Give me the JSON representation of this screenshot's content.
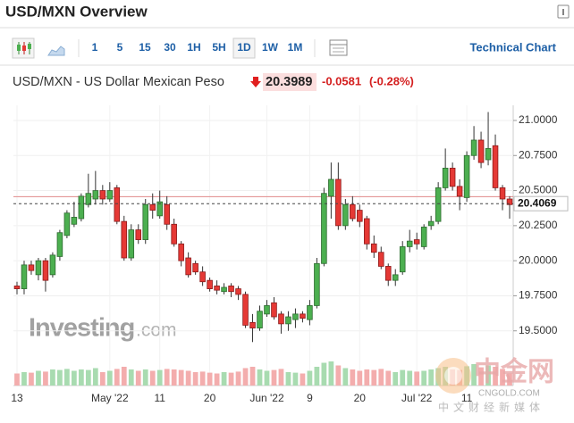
{
  "header": {
    "title": "USD/MXN Overview"
  },
  "toolbar": {
    "intervals": [
      "1",
      "5",
      "15",
      "30",
      "1H",
      "5H",
      "1D",
      "1W",
      "1M"
    ],
    "selected_interval": 6,
    "technical_chart": "Technical Chart"
  },
  "quote": {
    "name": "USD/MXN - US Dollar Mexican Peso",
    "price": "20.3989",
    "change": "-0.0581",
    "change_percent": "(-0.28%)"
  },
  "watermark": {
    "brand": "Investing",
    "brand_suffix": ".com",
    "cn_name": "中金网",
    "cn_site": "CNGOLD.COM",
    "cn_slogan": "中文财经新媒体"
  },
  "chart_data": {
    "type": "candlestick",
    "categories": [
      "13",
      null,
      null,
      null,
      null,
      null,
      null,
      null,
      null,
      null,
      null,
      null,
      null,
      "May '22",
      null,
      null,
      null,
      null,
      null,
      null,
      "11",
      null,
      null,
      null,
      null,
      null,
      null,
      "20",
      null,
      null,
      null,
      null,
      null,
      null,
      null,
      "Jun '22",
      null,
      null,
      null,
      null,
      null,
      "9",
      null,
      null,
      null,
      null,
      null,
      null,
      "20",
      null,
      null,
      null,
      null,
      null,
      null,
      null,
      "Jul '22",
      null,
      null,
      null,
      null,
      null,
      null,
      "11",
      null,
      null,
      null,
      null,
      null,
      null
    ],
    "open": [
      19.82,
      19.8,
      19.97,
      19.9,
      20.0,
      19.9,
      20.03,
      20.18,
      20.26,
      20.3,
      20.4,
      20.44,
      20.5,
      20.44,
      20.52,
      20.28,
      20.02,
      20.22,
      20.15,
      20.4,
      20.32,
      20.4,
      20.26,
      20.12,
      20.02,
      19.98,
      19.92,
      19.86,
      19.82,
      19.78,
      19.82,
      19.8,
      19.76,
      19.56,
      19.52,
      19.62,
      19.7,
      19.62,
      19.55,
      19.58,
      19.62,
      19.58,
      19.68,
      19.98,
      20.46,
      20.58,
      20.25,
      20.4,
      20.36,
      20.3,
      20.12,
      20.06,
      19.96,
      19.86,
      19.92,
      20.1,
      20.15,
      20.1,
      20.25,
      20.28,
      20.52,
      20.66,
      20.53,
      20.45,
      20.75,
      20.86,
      20.72,
      20.82,
      20.52,
      20.44
    ],
    "high": [
      19.85,
      20.0,
      20.0,
      20.02,
      20.02,
      20.06,
      20.22,
      20.36,
      20.42,
      20.48,
      20.62,
      20.64,
      20.54,
      20.56,
      20.54,
      20.32,
      20.26,
      20.26,
      20.44,
      20.48,
      20.5,
      20.46,
      20.3,
      20.14,
      20.06,
      20.0,
      19.96,
      19.88,
      19.86,
      19.84,
      19.84,
      19.82,
      19.78,
      19.62,
      19.68,
      19.72,
      19.74,
      19.64,
      19.64,
      19.66,
      19.64,
      19.72,
      20.02,
      20.52,
      20.7,
      20.7,
      20.44,
      20.46,
      20.4,
      20.32,
      20.18,
      20.1,
      19.98,
      19.94,
      20.14,
      20.22,
      20.2,
      20.26,
      20.32,
      20.56,
      20.8,
      20.7,
      20.58,
      20.78,
      20.96,
      20.92,
      21.06,
      20.9,
      20.54,
      20.46
    ],
    "low": [
      19.76,
      19.76,
      19.9,
      19.86,
      19.78,
      19.88,
      20.0,
      20.16,
      20.24,
      20.28,
      20.38,
      20.4,
      20.4,
      20.42,
      20.26,
      20.0,
      20.0,
      20.12,
      20.12,
      20.3,
      20.3,
      20.22,
      20.1,
      19.96,
      19.88,
      19.9,
      19.82,
      19.78,
      19.76,
      19.76,
      19.74,
      19.72,
      19.52,
      19.42,
      19.5,
      19.6,
      19.58,
      19.48,
      19.5,
      19.52,
      19.56,
      19.54,
      19.66,
      19.96,
      20.3,
      20.22,
      20.22,
      20.28,
      20.24,
      20.08,
      20.02,
      19.94,
      19.82,
      19.82,
      19.9,
      20.06,
      20.08,
      20.08,
      20.22,
      20.26,
      20.5,
      20.5,
      20.36,
      20.42,
      20.72,
      20.66,
      20.68,
      20.5,
      20.36,
      20.3
    ],
    "close": [
      19.8,
      19.97,
      19.93,
      20.0,
      19.86,
      20.04,
      20.2,
      20.34,
      20.31,
      20.46,
      20.48,
      20.5,
      20.44,
      20.5,
      20.28,
      20.02,
      20.22,
      20.15,
      20.4,
      20.36,
      20.42,
      20.26,
      20.12,
      20.0,
      19.9,
      19.92,
      19.85,
      19.8,
      19.79,
      19.81,
      19.78,
      19.76,
      19.54,
      19.52,
      19.64,
      19.68,
      19.6,
      19.55,
      19.6,
      19.62,
      19.59,
      19.68,
      19.98,
      20.48,
      20.58,
      20.25,
      20.4,
      20.3,
      20.28,
      20.12,
      20.06,
      19.96,
      19.86,
      19.9,
      20.1,
      20.14,
      20.12,
      20.24,
      20.28,
      20.52,
      20.66,
      20.53,
      20.46,
      20.75,
      20.86,
      20.7,
      20.8,
      20.52,
      20.44,
      20.4
    ],
    "volume": [
      45,
      50,
      48,
      55,
      52,
      60,
      58,
      62,
      55,
      60,
      58,
      65,
      50,
      55,
      62,
      70,
      60,
      55,
      60,
      55,
      58,
      62,
      60,
      58,
      55,
      50,
      52,
      48,
      45,
      50,
      48,
      52,
      65,
      70,
      60,
      55,
      58,
      62,
      50,
      48,
      45,
      55,
      70,
      85,
      90,
      75,
      65,
      60,
      55,
      60,
      58,
      62,
      55,
      50,
      58,
      55,
      52,
      55,
      60,
      65,
      70,
      60,
      58,
      72,
      80,
      68,
      75,
      70,
      62,
      45
    ],
    "volume_ylim": [
      0,
      100
    ],
    "up_color": "#4caf50",
    "down_color": "#e53935",
    "up_volume_color": "#a8dbb0",
    "down_volume_color": "#f3adad",
    "reference_line": 20.457,
    "reference_color": "#e08a8a",
    "current_price": {
      "value": 20.4069,
      "label": "20.4069"
    },
    "ylim": [
      19.282,
      21.108
    ],
    "yticks": [
      {
        "value": 19.5,
        "label": "19.5000"
      },
      {
        "value": 19.75,
        "label": "19.7500"
      },
      {
        "value": 20,
        "label": "20.0000"
      },
      {
        "value": 20.25,
        "label": "20.2500"
      },
      {
        "value": 20.5,
        "label": "20.5000"
      },
      {
        "value": 20.75,
        "label": "20.7500"
      },
      {
        "value": 21,
        "label": "21.0000"
      }
    ],
    "grid": true
  }
}
